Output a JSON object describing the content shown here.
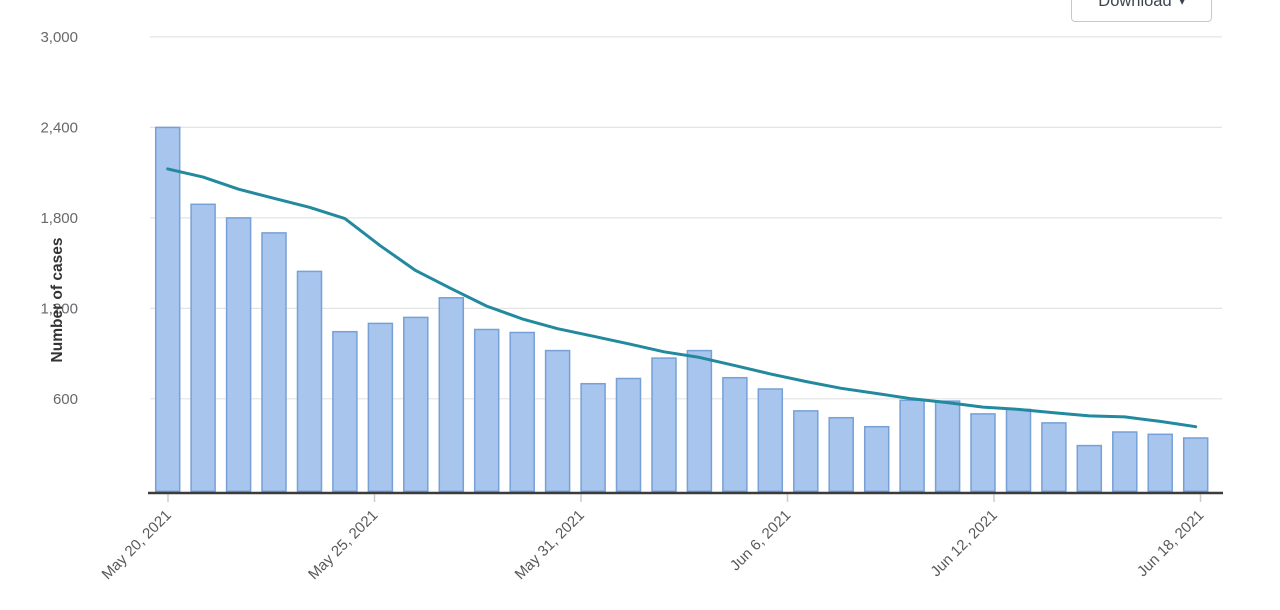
{
  "toolbar": {
    "download_label": "Download",
    "download_caret": "▾"
  },
  "chart_data": {
    "type": "bar",
    "title": "",
    "xlabel": "",
    "ylabel": "Number of cases",
    "ylim": [
      0,
      3000
    ],
    "grid": true,
    "legend": "none",
    "y_ticks": [
      600,
      1200,
      1800,
      2400,
      3000
    ],
    "x_ticks": {
      "labels": [
        "May 20, 2021",
        "May 25, 2021",
        "May 31, 2021",
        "Jun 6, 2021",
        "Jun 12, 2021",
        "Jun 18, 2021"
      ],
      "indices": [
        0,
        5,
        11,
        17,
        23,
        29
      ]
    },
    "categories": [
      "May 20, 2021",
      "May 21, 2021",
      "May 22, 2021",
      "May 23, 2021",
      "May 24, 2021",
      "May 25, 2021",
      "May 26, 2021",
      "May 27, 2021",
      "May 28, 2021",
      "May 29, 2021",
      "May 30, 2021",
      "May 31, 2021",
      "Jun 1, 2021",
      "Jun 2, 2021",
      "Jun 3, 2021",
      "Jun 4, 2021",
      "Jun 5, 2021",
      "Jun 6, 2021",
      "Jun 7, 2021",
      "Jun 8, 2021",
      "Jun 9, 2021",
      "Jun 10, 2021",
      "Jun 11, 2021",
      "Jun 12, 2021",
      "Jun 13, 2021",
      "Jun 14, 2021",
      "Jun 15, 2021",
      "Jun 16, 2021",
      "Jun 17, 2021",
      "Jun 18, 2021"
    ],
    "series": [
      {
        "id": "daily-cases-bars",
        "type": "bar",
        "values": [
          2400,
          1890,
          1800,
          1700,
          1445,
          1045,
          1100,
          1140,
          1270,
          1060,
          1040,
          920,
          700,
          735,
          870,
          920,
          740,
          665,
          520,
          475,
          415,
          590,
          585,
          500,
          530,
          440,
          290,
          380,
          365,
          340
        ]
      },
      {
        "id": "trend-line",
        "type": "line",
        "values": [
          2125,
          2070,
          1990,
          1930,
          1870,
          1795,
          1615,
          1450,
          1330,
          1215,
          1130,
          1065,
          1015,
          965,
          912,
          875,
          820,
          765,
          715,
          670,
          635,
          600,
          575,
          545,
          530,
          508,
          487,
          480,
          450,
          415
        ]
      }
    ],
    "colors": {
      "bar_fill": "#a8c5ee",
      "bar_stroke": "#76a0d6",
      "line": "#22899e",
      "grid": "#e4e4e4",
      "axis": "#3b3b3b",
      "tick": "#cccccc",
      "x_label": "#58595b",
      "y_label": "#66686b",
      "ylabel_color": "#333333"
    }
  }
}
